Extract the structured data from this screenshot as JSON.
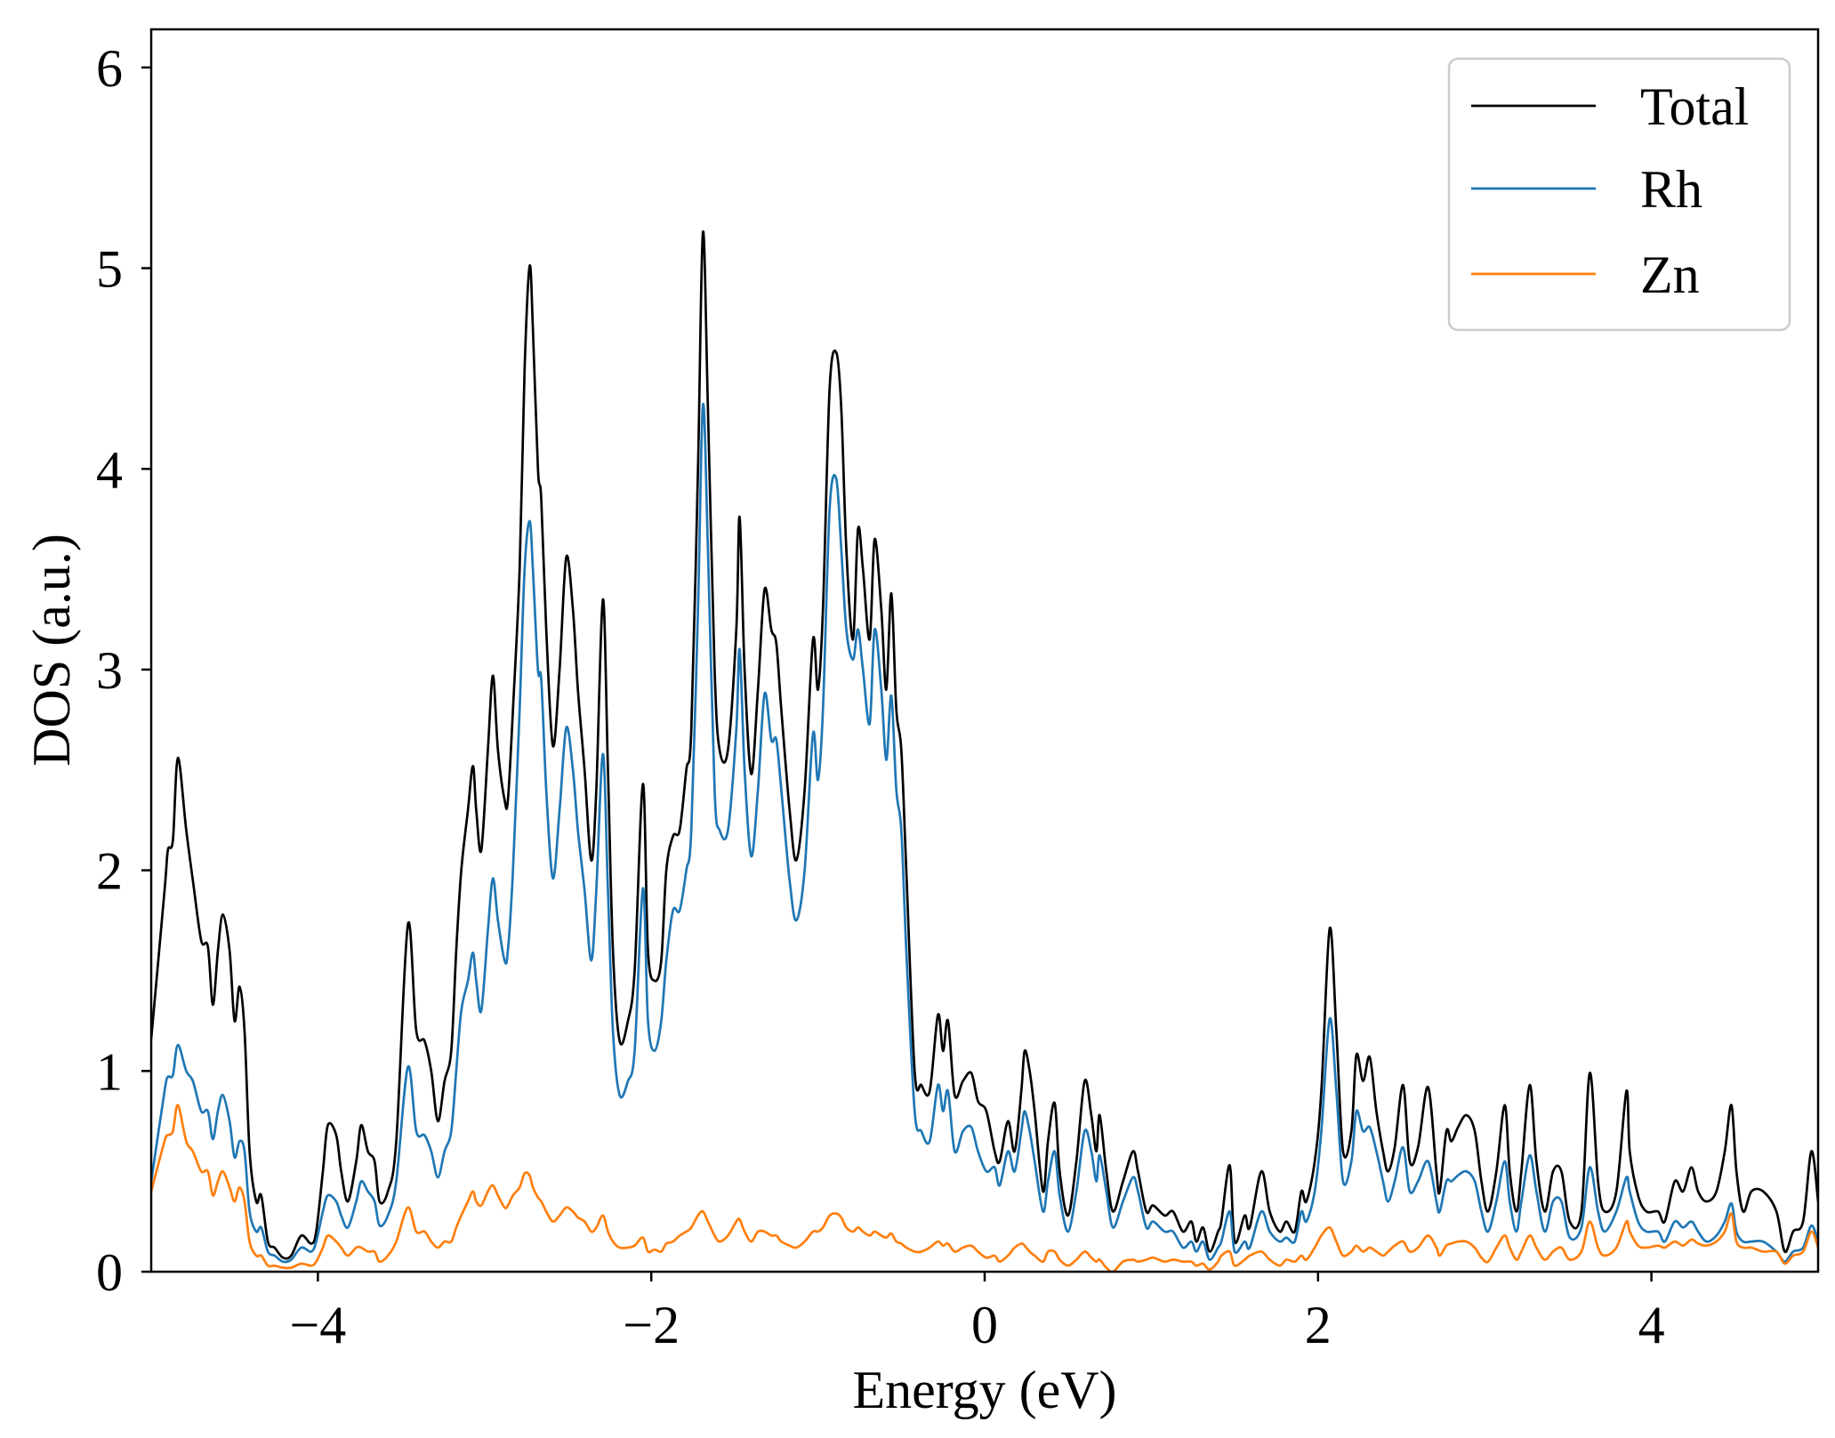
{
  "chart_data": {
    "type": "line",
    "xlabel": "Energy (eV)",
    "ylabel": "DOS (a.u.)",
    "xlim": [
      -5,
      5
    ],
    "ylim": [
      0,
      6.19
    ],
    "xticks": [
      -4,
      -2,
      0,
      2,
      4
    ],
    "xtick_labels": [
      "−4",
      "−2",
      "0",
      "2",
      "4"
    ],
    "yticks": [
      0,
      1,
      2,
      3,
      4,
      5,
      6
    ],
    "ytick_labels": [
      "0",
      "1",
      "2",
      "3",
      "4",
      "5",
      "6"
    ],
    "grid": false,
    "legend": {
      "position": "top-right"
    },
    "x": [
      -5.0,
      -4.92,
      -4.9,
      -4.87,
      -4.84,
      -4.79,
      -4.75,
      -4.7,
      -4.66,
      -4.63,
      -4.6,
      -4.57,
      -4.53,
      -4.5,
      -4.47,
      -4.44,
      -4.41,
      -4.37,
      -4.34,
      -4.3,
      -4.26,
      -4.21,
      -4.16,
      -4.1,
      -4.04,
      -4.01,
      -3.97,
      -3.94,
      -3.89,
      -3.86,
      -3.82,
      -3.77,
      -3.74,
      -3.7,
      -3.66,
      -3.63,
      -3.58,
      -3.53,
      -3.46,
      -3.41,
      -3.36,
      -3.32,
      -3.28,
      -3.24,
      -3.2,
      -3.17,
      -3.14,
      -3.1,
      -3.07,
      -3.05,
      -3.02,
      -2.98,
      -2.95,
      -2.92,
      -2.88,
      -2.86,
      -2.83,
      -2.79,
      -2.76,
      -2.73,
      -2.71,
      -2.68,
      -2.66,
      -2.63,
      -2.59,
      -2.55,
      -2.51,
      -2.47,
      -2.44,
      -2.4,
      -2.36,
      -2.33,
      -2.29,
      -2.26,
      -2.23,
      -2.19,
      -2.14,
      -2.1,
      -2.05,
      -2.02,
      -1.98,
      -1.94,
      -1.91,
      -1.87,
      -1.83,
      -1.79,
      -1.76,
      -1.72,
      -1.69,
      -1.66,
      -1.62,
      -1.59,
      -1.54,
      -1.49,
      -1.47,
      -1.44,
      -1.4,
      -1.36,
      -1.32,
      -1.28,
      -1.25,
      -1.22,
      -1.17,
      -1.13,
      -1.08,
      -1.03,
      -1.0,
      -0.97,
      -0.93,
      -0.89,
      -0.86,
      -0.83,
      -0.79,
      -0.76,
      -0.73,
      -0.69,
      -0.66,
      -0.62,
      -0.59,
      -0.56,
      -0.53,
      -0.5,
      -0.47,
      -0.42,
      -0.38,
      -0.33,
      -0.28,
      -0.25,
      -0.22,
      -0.18,
      -0.13,
      -0.08,
      -0.04,
      0.01,
      0.06,
      0.09,
      0.14,
      0.18,
      0.22,
      0.24,
      0.27,
      0.3,
      0.35,
      0.38,
      0.42,
      0.45,
      0.5,
      0.55,
      0.6,
      0.64,
      0.67,
      0.69,
      0.73,
      0.77,
      0.83,
      0.89,
      0.92,
      0.97,
      1.01,
      1.08,
      1.13,
      1.19,
      1.24,
      1.27,
      1.31,
      1.35,
      1.4,
      1.42,
      1.47,
      1.5,
      1.56,
      1.59,
      1.66,
      1.71,
      1.77,
      1.81,
      1.86,
      1.9,
      1.93,
      1.98,
      2.02,
      2.07,
      2.11,
      2.15,
      2.2,
      2.23,
      2.27,
      2.31,
      2.35,
      2.39,
      2.42,
      2.46,
      2.51,
      2.55,
      2.6,
      2.66,
      2.71,
      2.73,
      2.77,
      2.8,
      2.84,
      2.89,
      2.94,
      2.98,
      3.02,
      3.07,
      3.12,
      3.15,
      3.19,
      3.22,
      3.27,
      3.31,
      3.36,
      3.41,
      3.46,
      3.51,
      3.58,
      3.63,
      3.68,
      3.72,
      3.79,
      3.85,
      3.87,
      3.92,
      3.97,
      4.04,
      4.08,
      4.14,
      4.19,
      4.24,
      4.28,
      4.33,
      4.39,
      4.44,
      4.48,
      4.51,
      4.55,
      4.6,
      4.67,
      4.75,
      4.8,
      4.85,
      4.91,
      4.96,
      5.0
    ],
    "series": [
      {
        "name": "Total",
        "color": "#000000",
        "values": [
          1.16,
          1.9,
          2.1,
          2.15,
          2.56,
          2.2,
          1.95,
          1.65,
          1.62,
          1.33,
          1.6,
          1.78,
          1.6,
          1.25,
          1.42,
          1.2,
          0.6,
          0.35,
          0.38,
          0.15,
          0.12,
          0.07,
          0.08,
          0.18,
          0.14,
          0.2,
          0.5,
          0.73,
          0.68,
          0.5,
          0.35,
          0.55,
          0.73,
          0.6,
          0.55,
          0.35,
          0.4,
          0.65,
          1.73,
          1.2,
          1.15,
          1.0,
          0.75,
          0.95,
          1.1,
          1.6,
          2.0,
          2.3,
          2.52,
          2.3,
          2.1,
          2.6,
          2.97,
          2.6,
          2.35,
          2.35,
          2.8,
          3.5,
          4.5,
          5.01,
          4.7,
          4.0,
          3.85,
          3.2,
          2.62,
          3.0,
          3.56,
          3.3,
          2.9,
          2.5,
          2.05,
          2.4,
          3.35,
          2.5,
          1.6,
          1.15,
          1.25,
          1.5,
          2.43,
          1.6,
          1.45,
          1.55,
          2.0,
          2.17,
          2.2,
          2.5,
          2.7,
          4.0,
          5.18,
          4.3,
          3.0,
          2.6,
          2.6,
          3.2,
          3.76,
          3.0,
          2.48,
          2.9,
          3.4,
          3.2,
          3.13,
          2.8,
          2.3,
          2.05,
          2.4,
          3.15,
          2.9,
          3.3,
          4.4,
          4.58,
          4.3,
          3.6,
          3.15,
          3.7,
          3.5,
          3.15,
          3.65,
          3.3,
          2.9,
          3.38,
          2.8,
          2.6,
          2.0,
          1.0,
          0.93,
          0.9,
          1.28,
          1.1,
          1.25,
          0.88,
          0.95,
          0.99,
          0.85,
          0.8,
          0.6,
          0.55,
          0.75,
          0.6,
          0.9,
          1.1,
          1.0,
          0.8,
          0.4,
          0.65,
          0.84,
          0.5,
          0.28,
          0.55,
          0.95,
          0.78,
          0.6,
          0.78,
          0.5,
          0.3,
          0.45,
          0.6,
          0.5,
          0.3,
          0.33,
          0.28,
          0.3,
          0.2,
          0.25,
          0.15,
          0.22,
          0.1,
          0.2,
          0.25,
          0.53,
          0.15,
          0.28,
          0.22,
          0.5,
          0.3,
          0.2,
          0.25,
          0.2,
          0.4,
          0.35,
          0.55,
          0.9,
          1.71,
          1.2,
          0.6,
          0.7,
          1.08,
          0.95,
          1.07,
          0.8,
          0.6,
          0.5,
          0.62,
          0.93,
          0.55,
          0.62,
          0.92,
          0.5,
          0.4,
          0.7,
          0.65,
          0.72,
          0.78,
          0.7,
          0.45,
          0.3,
          0.5,
          0.83,
          0.5,
          0.3,
          0.5,
          0.93,
          0.55,
          0.3,
          0.5,
          0.5,
          0.25,
          0.3,
          0.99,
          0.45,
          0.3,
          0.4,
          0.9,
          0.6,
          0.38,
          0.3,
          0.3,
          0.25,
          0.45,
          0.4,
          0.52,
          0.4,
          0.35,
          0.4,
          0.6,
          0.83,
          0.5,
          0.3,
          0.4,
          0.4,
          0.3,
          0.1,
          0.2,
          0.25,
          0.6,
          0.35
        ]
      },
      {
        "name": "Rh",
        "color": "#1f77b4",
        "values": [
          0.45,
          0.9,
          0.97,
          0.98,
          1.13,
          1.0,
          0.95,
          0.8,
          0.8,
          0.66,
          0.8,
          0.88,
          0.75,
          0.57,
          0.65,
          0.6,
          0.3,
          0.2,
          0.22,
          0.1,
          0.08,
          0.05,
          0.06,
          0.12,
          0.1,
          0.15,
          0.3,
          0.38,
          0.35,
          0.28,
          0.22,
          0.35,
          0.45,
          0.4,
          0.35,
          0.23,
          0.28,
          0.45,
          1.02,
          0.7,
          0.68,
          0.6,
          0.47,
          0.6,
          0.7,
          1.0,
          1.3,
          1.45,
          1.59,
          1.45,
          1.3,
          1.7,
          1.96,
          1.75,
          1.55,
          1.6,
          2.0,
          2.8,
          3.5,
          3.74,
          3.5,
          3.0,
          2.95,
          2.4,
          1.96,
          2.3,
          2.71,
          2.5,
          2.2,
          1.9,
          1.55,
          1.9,
          2.58,
          1.9,
          1.2,
          0.88,
          0.95,
          1.1,
          1.91,
          1.25,
          1.1,
          1.25,
          1.55,
          1.8,
          1.8,
          2.0,
          2.2,
          3.3,
          4.32,
          3.6,
          2.4,
          2.2,
          2.2,
          2.7,
          3.1,
          2.5,
          2.07,
          2.4,
          2.88,
          2.65,
          2.65,
          2.4,
          1.95,
          1.75,
          2.0,
          2.68,
          2.45,
          2.8,
          3.8,
          3.95,
          3.6,
          3.2,
          3.05,
          3.2,
          3.0,
          2.73,
          3.2,
          2.9,
          2.55,
          2.87,
          2.4,
          2.2,
          1.6,
          0.8,
          0.7,
          0.65,
          0.93,
          0.8,
          0.9,
          0.6,
          0.7,
          0.72,
          0.6,
          0.5,
          0.52,
          0.43,
          0.6,
          0.5,
          0.7,
          0.8,
          0.7,
          0.55,
          0.3,
          0.45,
          0.6,
          0.38,
          0.2,
          0.4,
          0.7,
          0.6,
          0.45,
          0.58,
          0.4,
          0.22,
          0.35,
          0.47,
          0.4,
          0.22,
          0.25,
          0.2,
          0.2,
          0.12,
          0.15,
          0.1,
          0.15,
          0.06,
          0.12,
          0.15,
          0.3,
          0.1,
          0.15,
          0.12,
          0.3,
          0.2,
          0.15,
          0.17,
          0.15,
          0.3,
          0.25,
          0.4,
          0.7,
          1.26,
          0.9,
          0.45,
          0.55,
          0.8,
          0.7,
          0.72,
          0.6,
          0.45,
          0.35,
          0.45,
          0.62,
          0.4,
          0.45,
          0.55,
          0.35,
          0.3,
          0.45,
          0.45,
          0.48,
          0.5,
          0.45,
          0.3,
          0.2,
          0.35,
          0.55,
          0.35,
          0.2,
          0.35,
          0.58,
          0.4,
          0.2,
          0.35,
          0.35,
          0.17,
          0.22,
          0.52,
          0.3,
          0.2,
          0.3,
          0.47,
          0.4,
          0.25,
          0.2,
          0.2,
          0.15,
          0.25,
          0.22,
          0.25,
          0.2,
          0.15,
          0.18,
          0.25,
          0.34,
          0.2,
          0.15,
          0.15,
          0.15,
          0.1,
          0.05,
          0.1,
          0.12,
          0.23,
          0.15
        ]
      },
      {
        "name": "Zn",
        "color": "#ff7f0e",
        "values": [
          0.4,
          0.65,
          0.68,
          0.7,
          0.83,
          0.65,
          0.6,
          0.5,
          0.5,
          0.38,
          0.45,
          0.5,
          0.42,
          0.35,
          0.42,
          0.35,
          0.15,
          0.08,
          0.08,
          0.03,
          0.03,
          0.02,
          0.02,
          0.04,
          0.03,
          0.05,
          0.12,
          0.18,
          0.15,
          0.12,
          0.08,
          0.12,
          0.12,
          0.1,
          0.1,
          0.05,
          0.08,
          0.15,
          0.32,
          0.2,
          0.2,
          0.15,
          0.12,
          0.15,
          0.15,
          0.22,
          0.28,
          0.35,
          0.4,
          0.35,
          0.33,
          0.4,
          0.43,
          0.38,
          0.32,
          0.33,
          0.38,
          0.42,
          0.49,
          0.48,
          0.42,
          0.37,
          0.35,
          0.3,
          0.25,
          0.28,
          0.32,
          0.3,
          0.27,
          0.25,
          0.2,
          0.22,
          0.28,
          0.2,
          0.15,
          0.12,
          0.12,
          0.13,
          0.17,
          0.1,
          0.11,
          0.1,
          0.14,
          0.15,
          0.18,
          0.2,
          0.22,
          0.28,
          0.3,
          0.25,
          0.18,
          0.15,
          0.18,
          0.25,
          0.26,
          0.2,
          0.15,
          0.2,
          0.2,
          0.18,
          0.18,
          0.15,
          0.13,
          0.12,
          0.15,
          0.2,
          0.2,
          0.22,
          0.28,
          0.29,
          0.27,
          0.22,
          0.2,
          0.22,
          0.2,
          0.18,
          0.2,
          0.18,
          0.17,
          0.19,
          0.15,
          0.14,
          0.12,
          0.1,
          0.1,
          0.12,
          0.15,
          0.13,
          0.14,
          0.1,
          0.12,
          0.13,
          0.1,
          0.07,
          0.08,
          0.05,
          0.08,
          0.12,
          0.14,
          0.13,
          0.1,
          0.08,
          0.05,
          0.1,
          0.1,
          0.06,
          0.03,
          0.06,
          0.1,
          0.07,
          0.05,
          0.06,
          0.02,
          0.0,
          0.05,
          0.06,
          0.05,
          0.06,
          0.07,
          0.05,
          0.06,
          0.05,
          0.05,
          0.03,
          0.04,
          0.01,
          0.05,
          0.08,
          0.1,
          0.03,
          0.06,
          0.08,
          0.1,
          0.06,
          0.03,
          0.06,
          0.05,
          0.08,
          0.06,
          0.12,
          0.18,
          0.22,
          0.15,
          0.08,
          0.1,
          0.13,
          0.1,
          0.12,
          0.1,
          0.08,
          0.1,
          0.13,
          0.15,
          0.1,
          0.12,
          0.18,
          0.12,
          0.08,
          0.13,
          0.14,
          0.15,
          0.15,
          0.12,
          0.07,
          0.05,
          0.12,
          0.18,
          0.12,
          0.06,
          0.1,
          0.18,
          0.12,
          0.06,
          0.1,
          0.12,
          0.06,
          0.1,
          0.25,
          0.12,
          0.08,
          0.12,
          0.25,
          0.2,
          0.13,
          0.12,
          0.13,
          0.12,
          0.15,
          0.13,
          0.16,
          0.14,
          0.13,
          0.15,
          0.2,
          0.29,
          0.15,
          0.12,
          0.12,
          0.1,
          0.1,
          0.04,
          0.08,
          0.1,
          0.2,
          0.12
        ]
      }
    ]
  }
}
